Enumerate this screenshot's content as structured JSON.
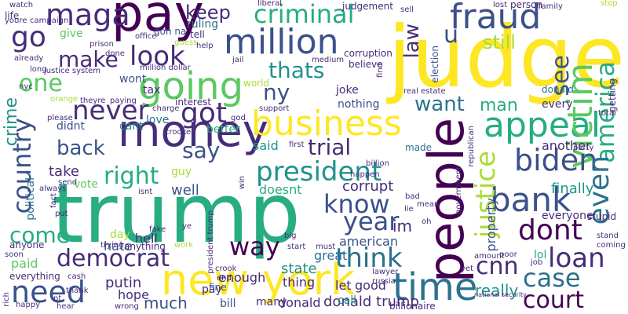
{
  "palette": {
    "background": "#ffffff",
    "dark_purple": "#440154",
    "indigo": "#472c7a",
    "blue": "#3b518b",
    "steel": "#2c718e",
    "teal": "#21918c",
    "green_teal": "#27ad81",
    "green": "#5cc863",
    "lime": "#aadc32",
    "yellow": "#fde725"
  },
  "words": [
    {
      "text": "trump",
      "color": "green_teal"
    },
    {
      "text": "judge",
      "color": "yellow"
    },
    {
      "text": "money",
      "color": "indigo"
    },
    {
      "text": "pay",
      "color": "dark_purple"
    },
    {
      "text": "people",
      "color": "dark_purple"
    },
    {
      "text": "new york",
      "color": "yellow"
    },
    {
      "text": "business",
      "color": "yellow"
    },
    {
      "text": "going",
      "color": "green"
    },
    {
      "text": "million",
      "color": "blue"
    },
    {
      "text": "appeal",
      "color": "green_teal"
    },
    {
      "text": "time",
      "color": "steel"
    },
    {
      "text": "fraud",
      "color": "blue"
    },
    {
      "text": "bank",
      "color": "blue"
    },
    {
      "text": "criminal",
      "color": "green_teal"
    },
    {
      "text": "president",
      "color": "teal"
    },
    {
      "text": "victim",
      "color": "green"
    },
    {
      "text": "democrat",
      "color": "indigo"
    },
    {
      "text": "biden",
      "color": "blue"
    },
    {
      "text": "america",
      "color": "green_teal"
    },
    {
      "text": "justice",
      "color": "lime"
    },
    {
      "text": "country",
      "color": "blue"
    },
    {
      "text": "even",
      "color": "steel"
    },
    {
      "text": "never",
      "color": "indigo"
    },
    {
      "text": "maga",
      "color": "indigo"
    },
    {
      "text": "go",
      "color": "indigo"
    },
    {
      "text": "look",
      "color": "indigo"
    },
    {
      "text": "got",
      "color": "indigo"
    },
    {
      "text": "need",
      "color": "blue"
    },
    {
      "text": "dont",
      "color": "dark_purple"
    },
    {
      "text": "loan",
      "color": "indigo"
    },
    {
      "text": "case",
      "color": "steel"
    },
    {
      "text": "court",
      "color": "dark_purple"
    },
    {
      "text": "think",
      "color": "steel"
    },
    {
      "text": "year",
      "color": "blue"
    },
    {
      "text": "know",
      "color": "blue"
    },
    {
      "text": "cnn",
      "color": "indigo"
    },
    {
      "text": "way",
      "color": "dark_purple"
    },
    {
      "text": "right",
      "color": "green_teal"
    },
    {
      "text": "say",
      "color": "blue"
    },
    {
      "text": "make",
      "color": "indigo"
    },
    {
      "text": "one",
      "color": "green"
    },
    {
      "text": "thats",
      "color": "teal"
    },
    {
      "text": "trial",
      "color": "indigo"
    },
    {
      "text": "want",
      "color": "steel"
    },
    {
      "text": "man",
      "color": "green_teal"
    },
    {
      "text": "back",
      "color": "blue"
    },
    {
      "text": "come",
      "color": "green_teal"
    },
    {
      "text": "keep",
      "color": "indigo"
    },
    {
      "text": "law",
      "color": "indigo"
    },
    {
      "text": "see",
      "color": "blue"
    },
    {
      "text": "still",
      "color": "lime"
    },
    {
      "text": "ny",
      "color": "blue"
    },
    {
      "text": "u",
      "color": "blue"
    },
    {
      "text": "crime",
      "color": "teal"
    },
    {
      "text": "im",
      "color": "indigo"
    },
    {
      "text": "corrupt",
      "color": "indigo"
    },
    {
      "text": "american",
      "color": "blue"
    },
    {
      "text": "state",
      "color": "teal"
    },
    {
      "text": "donald",
      "color": "indigo"
    },
    {
      "text": "good",
      "color": "indigo"
    },
    {
      "text": "donald trump",
      "color": "indigo"
    },
    {
      "text": "really",
      "color": "teal"
    },
    {
      "text": "much",
      "color": "blue"
    },
    {
      "text": "hope",
      "color": "indigo"
    },
    {
      "text": "putin",
      "color": "indigo"
    },
    {
      "text": "paid",
      "color": "green"
    },
    {
      "text": "everything",
      "color": "indigo"
    },
    {
      "text": "hell",
      "color": "indigo"
    },
    {
      "text": "hate",
      "color": "blue"
    },
    {
      "text": "day",
      "color": "lime"
    },
    {
      "text": "well",
      "color": "blue"
    },
    {
      "text": "take",
      "color": "indigo"
    },
    {
      "text": "vote",
      "color": "green"
    },
    {
      "text": "political",
      "color": "steel"
    },
    {
      "text": "tax",
      "color": "indigo"
    },
    {
      "text": "joke",
      "color": "indigo"
    },
    {
      "text": "nothing",
      "color": "blue"
    },
    {
      "text": "donald",
      "color": "steel"
    },
    {
      "text": "every",
      "color": "indigo"
    },
    {
      "text": "another",
      "color": "indigo"
    },
    {
      "text": "finally",
      "color": "teal"
    },
    {
      "text": "property",
      "color": "blue"
    },
    {
      "text": "everyone",
      "color": "indigo"
    },
    {
      "text": "lol",
      "color": "green_teal"
    },
    {
      "text": "said",
      "color": "teal"
    },
    {
      "text": "doesnt",
      "color": "green_teal"
    },
    {
      "text": "made",
      "color": "steel"
    },
    {
      "text": "thing",
      "color": "indigo"
    },
    {
      "text": "enough",
      "color": "indigo"
    },
    {
      "text": "great",
      "color": "steel"
    },
    {
      "text": "let",
      "color": "indigo"
    },
    {
      "text": "call",
      "color": "teal"
    },
    {
      "text": "bill",
      "color": "blue"
    },
    {
      "text": "pay",
      "color": "indigo"
    },
    {
      "text": "many",
      "color": "indigo"
    },
    {
      "text": "fine",
      "color": "blue"
    },
    {
      "text": "love",
      "color": "steel"
    },
    {
      "text": "guy",
      "color": "lime"
    },
    {
      "text": "cant",
      "color": "teal"
    },
    {
      "text": "didnt",
      "color": "blue"
    },
    {
      "text": "wont",
      "color": "blue"
    },
    {
      "text": "better",
      "color": "green_teal"
    },
    {
      "text": "interest",
      "color": "indigo"
    },
    {
      "text": "getting",
      "color": "indigo"
    },
    {
      "text": "world",
      "color": "lime"
    },
    {
      "text": "give",
      "color": "green"
    },
    {
      "text": "ruling",
      "color": "steel"
    },
    {
      "text": "tell",
      "color": "indigo"
    },
    {
      "text": "gon na",
      "color": "blue"
    },
    {
      "text": "office",
      "color": "indigo"
    },
    {
      "text": "guess",
      "color": "lime"
    },
    {
      "text": "help",
      "color": "indigo"
    },
    {
      "text": "corruption",
      "color": "indigo"
    },
    {
      "text": "believe",
      "color": "indigo"
    },
    {
      "text": "election",
      "color": "blue"
    },
    {
      "text": "judgement",
      "color": "indigo"
    },
    {
      "text": "sell",
      "color": "indigo"
    },
    {
      "text": "lost",
      "color": "indigo"
    },
    {
      "text": "person",
      "color": "indigo"
    },
    {
      "text": "family",
      "color": "indigo"
    },
    {
      "text": "stop",
      "color": "lime"
    },
    {
      "text": "liberal",
      "color": "indigo"
    },
    {
      "text": "prison",
      "color": "indigo"
    },
    {
      "text": "done",
      "color": "indigo"
    },
    {
      "text": "million dollar",
      "color": "indigo"
    },
    {
      "text": "justice system",
      "color": "indigo"
    },
    {
      "text": "life",
      "color": "indigo"
    },
    {
      "text": "youre",
      "color": "indigo"
    },
    {
      "text": "campaign",
      "color": "indigo"
    },
    {
      "text": "watch",
      "color": "indigo"
    },
    {
      "text": "already",
      "color": "indigo"
    },
    {
      "text": "long",
      "color": "indigo"
    },
    {
      "text": "nyc",
      "color": "indigo"
    },
    {
      "text": "please",
      "color": "indigo"
    },
    {
      "text": "orange",
      "color": "lime"
    },
    {
      "text": "theyre",
      "color": "indigo"
    },
    {
      "text": "paying",
      "color": "indigo"
    },
    {
      "text": "charge",
      "color": "indigo"
    },
    {
      "text": "jail",
      "color": "indigo"
    },
    {
      "text": "medium",
      "color": "indigo"
    },
    {
      "text": "find",
      "color": "indigo"
    },
    {
      "text": "real estate",
      "color": "indigo"
    },
    {
      "text": "support",
      "color": "indigo"
    },
    {
      "text": "god",
      "color": "indigo"
    },
    {
      "text": "total",
      "color": "indigo"
    },
    {
      "text": "republican",
      "color": "indigo"
    },
    {
      "text": "party",
      "color": "indigo"
    },
    {
      "text": "stupid",
      "color": "indigo"
    },
    {
      "text": "stand",
      "color": "indigo"
    },
    {
      "text": "coming",
      "color": "indigo"
    },
    {
      "text": "first",
      "color": "indigo"
    },
    {
      "text": "happen",
      "color": "indigo"
    },
    {
      "text": "billion",
      "color": "indigo"
    },
    {
      "text": "government",
      "color": "indigo"
    },
    {
      "text": "isnt",
      "color": "indigo"
    },
    {
      "text": "win",
      "color": "indigo"
    },
    {
      "text": "crooked",
      "color": "indigo"
    },
    {
      "text": "always",
      "color": "indigo"
    },
    {
      "text": "fact",
      "color": "indigo"
    },
    {
      "text": "send",
      "color": "indigo"
    },
    {
      "text": "put",
      "color": "indigo"
    },
    {
      "text": "fake",
      "color": "indigo"
    },
    {
      "text": "ye",
      "color": "indigo"
    },
    {
      "text": "bad",
      "color": "indigo"
    },
    {
      "text": "yet",
      "color": "indigo"
    },
    {
      "text": "big",
      "color": "indigo"
    },
    {
      "text": "mean",
      "color": "indigo"
    },
    {
      "text": "lie",
      "color": "indigo"
    },
    {
      "text": "oh",
      "color": "indigo"
    },
    {
      "text": "start",
      "color": "indigo"
    },
    {
      "text": "must",
      "color": "indigo"
    },
    {
      "text": "trying",
      "color": "indigo"
    },
    {
      "text": "anything",
      "color": "indigo"
    },
    {
      "text": "work",
      "color": "lime"
    },
    {
      "text": "president trump",
      "color": "indigo"
    },
    {
      "text": "crook",
      "color": "indigo"
    },
    {
      "text": "end",
      "color": "indigo"
    },
    {
      "text": "lawyer",
      "color": "indigo"
    },
    {
      "text": "russia",
      "color": "indigo"
    },
    {
      "text": "amount",
      "color": "indigo"
    },
    {
      "text": "poor",
      "color": "indigo"
    },
    {
      "text": "job",
      "color": "indigo"
    },
    {
      "text": "anyone",
      "color": "indigo"
    },
    {
      "text": "soon",
      "color": "indigo"
    },
    {
      "text": "rich",
      "color": "indigo"
    },
    {
      "text": "cash",
      "color": "indigo"
    },
    {
      "text": "thank",
      "color": "indigo"
    },
    {
      "text": "wrong",
      "color": "indigo"
    },
    {
      "text": "happy",
      "color": "indigo"
    },
    {
      "text": "billionaire",
      "color": "indigo"
    },
    {
      "text": "national security",
      "color": "indigo"
    },
    {
      "text": "nt",
      "color": "indigo"
    },
    {
      "text": "hear",
      "color": "indigo"
    }
  ]
}
